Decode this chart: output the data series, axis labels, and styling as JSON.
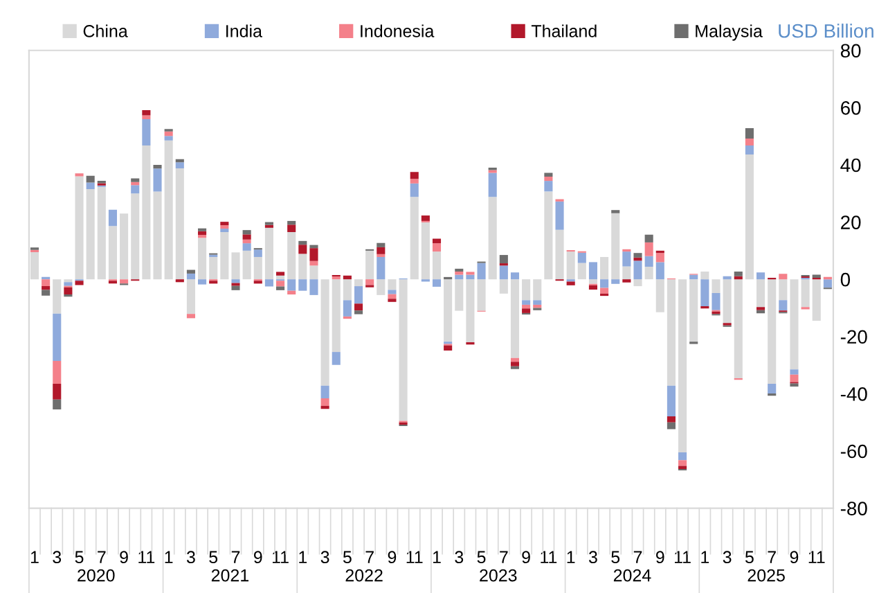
{
  "chart_data": {
    "type": "bar",
    "stacked": true,
    "categories": [
      "1",
      null,
      "3",
      null,
      "5",
      null,
      "7",
      null,
      "9",
      null,
      "11",
      null,
      "1",
      null,
      "3",
      null,
      "5",
      null,
      "7",
      null,
      "9",
      null,
      "11",
      null,
      "1",
      null,
      "3",
      null,
      "5",
      null,
      "7",
      null,
      "9",
      null,
      "11",
      null,
      "1",
      null,
      "3",
      null,
      "5",
      null,
      "7",
      null,
      "9",
      null,
      "11",
      null,
      "1",
      null,
      "3",
      null,
      "5",
      null,
      "7",
      null,
      "9",
      null,
      "11",
      null,
      "1",
      null,
      "3",
      null,
      "5",
      null,
      "7",
      null,
      "9",
      null,
      "11",
      null
    ],
    "series": [
      {
        "name": "China",
        "color": "#d9d9d9",
        "values": [
          9.5,
          0,
          -12,
          -1,
          36,
          31.5,
          32.3,
          18.6,
          23,
          30,
          46.8,
          30.7,
          48.5,
          38.8,
          -12.1,
          14.5,
          7.8,
          16.5,
          9.4,
          10,
          7.8,
          18,
          1.3,
          16.5,
          8.9,
          4.8,
          -37.2,
          -25.4,
          -7.3,
          -2.4,
          10,
          -5.5,
          -3.7,
          -49.5,
          28.8,
          19.9,
          9.7,
          -21.8,
          -11,
          -22,
          -11,
          28.8,
          -5,
          -27.5,
          -7.3,
          -7.3,
          30.7,
          17.3,
          9.7,
          5.7,
          -1.6,
          7.8,
          23.1,
          4.5,
          -2.4,
          4.4,
          -11.5,
          -37.2,
          -60.5,
          -21.8,
          2.7,
          -4.8,
          -15.3,
          -34.6,
          43.6,
          -9.7,
          -36.5,
          -7.3,
          -31.5,
          -9.7,
          -14.5,
          0
        ]
      },
      {
        "name": "India",
        "color": "#8faadc",
        "values": [
          0,
          0.8,
          -16.5,
          -1.3,
          -0.5,
          2.3,
          0.5,
          5.7,
          0,
          2.9,
          9.2,
          8,
          1.6,
          2.1,
          2,
          -1.8,
          0.8,
          1.2,
          -1.3,
          2.6,
          2.6,
          -2.5,
          -0.5,
          -4,
          -4,
          -5.5,
          -4.4,
          -4.5,
          -5.7,
          -6.1,
          0,
          7.8,
          -1.5,
          0.3,
          4.7,
          -0.8,
          -2.6,
          -0.8,
          1.6,
          1.6,
          5.7,
          8.4,
          4.8,
          2.4,
          -1.6,
          -1.6,
          3.7,
          9.9,
          -0.8,
          3.6,
          6,
          -3,
          -1.6,
          5.2,
          6.5,
          3.7,
          6,
          -10.7,
          -2.7,
          1.6,
          -9.4,
          -6,
          1.1,
          0,
          3.2,
          2.4,
          -3.4,
          -3.6,
          -1.8,
          0.5,
          0,
          -2.9
        ]
      },
      {
        "name": "Indonesia",
        "color": "#f4808a",
        "values": [
          0.8,
          -2.4,
          -8,
          -0.5,
          1,
          0,
          0,
          -0.5,
          -1.5,
          1.1,
          1.3,
          0,
          1.6,
          0,
          -1.5,
          1,
          -0.5,
          1.2,
          0,
          1.3,
          -0.5,
          0,
          -2,
          -1.3,
          0,
          1.6,
          -2.6,
          1,
          -0.8,
          0,
          -2,
          1,
          -1.6,
          -0.5,
          1.6,
          0.5,
          2.9,
          -0.5,
          1.1,
          1,
          -0.3,
          1,
          0,
          -1.3,
          -1.3,
          -1.1,
          1.5,
          0.8,
          0.5,
          0.5,
          -0.5,
          -2,
          0,
          0.8,
          0,
          4.8,
          3.2,
          0.3,
          -2,
          0.3,
          0,
          -0.5,
          0,
          -0.5,
          2.4,
          0,
          0,
          1.9,
          -2.6,
          -0.8,
          0,
          0.8
        ]
      },
      {
        "name": "Thailand",
        "color": "#b2182b",
        "values": [
          0,
          -1.3,
          -5.5,
          -2.5,
          -1.5,
          0,
          0.8,
          -1,
          0,
          -0.5,
          1.8,
          0,
          0,
          -1,
          0,
          1.3,
          -1,
          1.2,
          -1,
          1.8,
          -1,
          1,
          1.3,
          2.6,
          3.2,
          4.5,
          -1.1,
          0.5,
          1.3,
          -2.4,
          -0.8,
          2.4,
          -1.1,
          -0.8,
          2.4,
          1.9,
          1.6,
          -1.8,
          0,
          -0.8,
          0,
          0,
          0.8,
          -1.6,
          -1.6,
          0,
          0,
          -0.5,
          -1.3,
          0,
          -1.5,
          -0.8,
          0,
          -1.1,
          1.1,
          0,
          0.8,
          -2.1,
          -1.1,
          0,
          -0.8,
          -0.8,
          -0.8,
          1.1,
          0,
          -1.1,
          0.5,
          -0.5,
          -0.5,
          0.5,
          0.5,
          0
        ]
      },
      {
        "name": "Malaysia",
        "color": "#6e6e6e",
        "values": [
          0.8,
          -2,
          -3.5,
          -0.8,
          0,
          2.4,
          0.8,
          0,
          -0.5,
          1.3,
          0,
          1.3,
          0.8,
          1.1,
          1.3,
          1,
          0.5,
          0,
          -1.5,
          1.5,
          0.5,
          1,
          -1.3,
          1.3,
          1.3,
          1.1,
          0,
          0,
          0,
          -1.3,
          0.5,
          1.5,
          0,
          -0.5,
          0,
          0,
          0,
          0.8,
          1,
          0,
          0.5,
          0.8,
          2.9,
          -1,
          -0.5,
          -0.8,
          1.3,
          0,
          0,
          0,
          0,
          0,
          1.1,
          0,
          1.6,
          2.7,
          0,
          -2.4,
          -0.5,
          -0.8,
          0,
          -0.5,
          -0.5,
          1.6,
          3.6,
          -1.1,
          -0.8,
          -0.5,
          -1.1,
          0.5,
          1.1,
          -0.5
        ]
      }
    ],
    "ylim": [
      -80,
      80
    ],
    "yticks": [
      -80,
      -60,
      -40,
      -20,
      0,
      20,
      40,
      60,
      80
    ],
    "legend": "top",
    "grid": false,
    "annotations": [
      "2020",
      "2021",
      "2022",
      "2023",
      "2024",
      "2025",
      "USD Billion"
    ]
  }
}
